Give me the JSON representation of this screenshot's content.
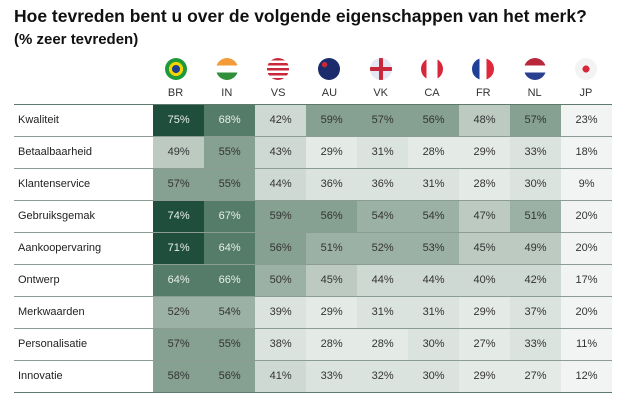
{
  "chart_data": {
    "type": "heatmap",
    "title": "Hoe tevreden bent u over de volgende eigenschappen van het merk?",
    "subtitle": "(% zeer tevreden)",
    "columns": [
      "BR",
      "IN",
      "VS",
      "AU",
      "VK",
      "CA",
      "FR",
      "NL",
      "JP"
    ],
    "flags": [
      "brazil-flag",
      "india-flag",
      "usa-flag",
      "australia-flag",
      "uk-flag",
      "canada-flag",
      "france-flag",
      "netherlands-flag",
      "japan-flag"
    ],
    "rows": [
      {
        "label": "Kwaliteit",
        "values": [
          75,
          68,
          42,
          59,
          57,
          56,
          48,
          57,
          23
        ]
      },
      {
        "label": "Betaalbaarheid",
        "values": [
          49,
          55,
          43,
          29,
          31,
          28,
          29,
          33,
          18
        ]
      },
      {
        "label": "Klantenservice",
        "values": [
          57,
          55,
          44,
          36,
          36,
          31,
          28,
          30,
          9
        ]
      },
      {
        "label": "Gebruiksgemak",
        "values": [
          74,
          67,
          59,
          56,
          54,
          54,
          47,
          51,
          20
        ]
      },
      {
        "label": "Aankoopervaring",
        "values": [
          71,
          64,
          56,
          51,
          52,
          53,
          45,
          49,
          20
        ]
      },
      {
        "label": "Ontwerp",
        "values": [
          64,
          66,
          50,
          45,
          44,
          44,
          40,
          42,
          17
        ]
      },
      {
        "label": "Merkwaarden",
        "values": [
          52,
          54,
          39,
          29,
          31,
          31,
          29,
          37,
          20
        ]
      },
      {
        "label": "Personalisatie",
        "values": [
          57,
          55,
          38,
          28,
          28,
          30,
          27,
          33,
          11
        ]
      },
      {
        "label": "Innovatie",
        "values": [
          58,
          56,
          41,
          33,
          32,
          30,
          29,
          27,
          12
        ]
      }
    ],
    "unit": "%",
    "color_scale": [
      "#f1f4f2",
      "#e3e9e5",
      "#d4ddd8",
      "#bccac2",
      "#97ad a1",
      "#7f9a8c",
      "#557b69",
      "#1f4f3c"
    ]
  }
}
